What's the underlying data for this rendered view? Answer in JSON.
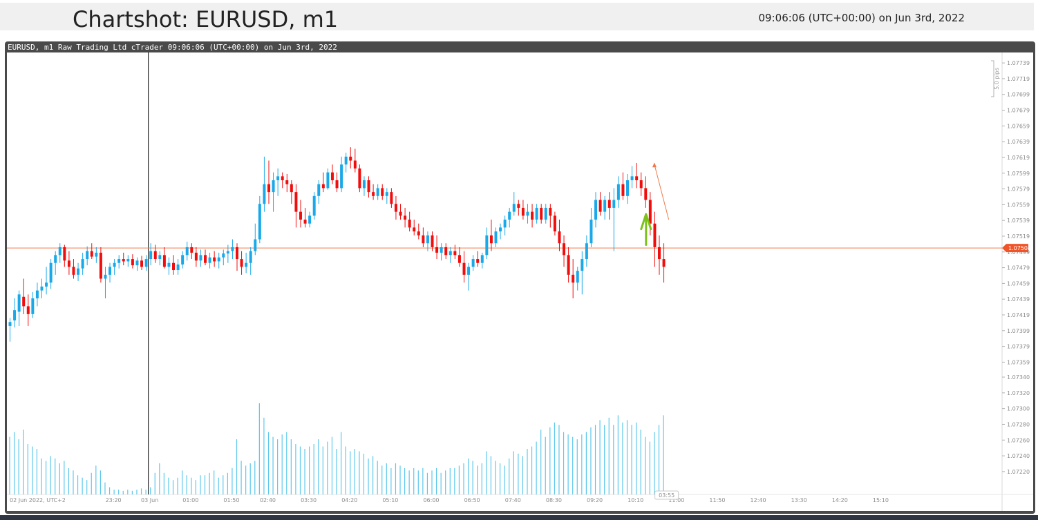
{
  "header": {
    "title": "Chartshot: EURUSD, m1",
    "timestamp": "09:06:06 (UTC+00:00) on Jun 3rd, 2022"
  },
  "chart_caption": "EURUSD, m1 Raw Trading Ltd cTrader 09:06:06 (UTC+00:00) on Jun 3rd, 2022",
  "colors": {
    "bull": "#1aa9e8",
    "bear": "#f20d0d",
    "volume": "#5bc8ec",
    "current_price_line": "#f07a4a",
    "annotation_arrow": "#7dc11b",
    "frame": "#4a4a4a"
  },
  "chart_data": {
    "type": "candlestick",
    "symbol": "EURUSD",
    "timeframe": "m1",
    "ylim": [
      1.07212,
      1.0774
    ],
    "y_ticks": [
      "1.07739",
      "1.07719",
      "1.07699",
      "1.07679",
      "1.07659",
      "1.07639",
      "1.07619",
      "1.07599",
      "1.07579",
      "1.07559",
      "1.07539",
      "1.07519",
      "1.07499",
      "1.07479",
      "1.07459",
      "1.07439",
      "1.07419",
      "1.07399",
      "1.07379",
      "1.07359",
      "1.07340",
      "1.07320",
      "1.07300",
      "1.07280",
      "1.07260",
      "1.07240",
      "1.07220"
    ],
    "x_ticks": [
      {
        "label": "02 Jun 2022, UTC+2",
        "slot": 0
      },
      {
        "label": "23:20",
        "slot": 23
      },
      {
        "label": "03 Jun",
        "slot": 31
      },
      {
        "label": "01:00",
        "slot": 40
      },
      {
        "label": "01:50",
        "slot": 49
      },
      {
        "label": "02:40",
        "slot": 57
      },
      {
        "label": "03:30",
        "slot": 66
      },
      {
        "label": "04:20",
        "slot": 75
      },
      {
        "label": "05:10",
        "slot": 84
      },
      {
        "label": "06:00",
        "slot": 93
      },
      {
        "label": "06:50",
        "slot": 102
      },
      {
        "label": "07:40",
        "slot": 111
      },
      {
        "label": "08:30",
        "slot": 120
      },
      {
        "label": "09:20",
        "slot": 129
      },
      {
        "label": "10:10",
        "slot": 138
      },
      {
        "label": "11:00",
        "slot": 147
      },
      {
        "label": "11:50",
        "slot": 156
      },
      {
        "label": "12:40",
        "slot": 165
      },
      {
        "label": "13:30",
        "slot": 174
      },
      {
        "label": "14:20",
        "slot": 183
      },
      {
        "label": "15:10",
        "slot": 192
      }
    ],
    "current_price": 1.07504,
    "current_price_label": "1.07504",
    "scale_label": "5.0 pips",
    "countdown": "03:55",
    "session_separator_slot": 31,
    "candles": [
      [
        1.07405,
        1.07415,
        1.07385,
        1.0741,
        48
      ],
      [
        1.07412,
        1.0744,
        1.07403,
        1.07425,
        52
      ],
      [
        1.07423,
        1.0745,
        1.07405,
        1.07445,
        46
      ],
      [
        1.07442,
        1.07465,
        1.0742,
        1.0743,
        54
      ],
      [
        1.0743,
        1.07445,
        1.07405,
        1.0742,
        42
      ],
      [
        1.0742,
        1.07448,
        1.07415,
        1.0744,
        40
      ],
      [
        1.0744,
        1.0746,
        1.0743,
        1.0745,
        38
      ],
      [
        1.0745,
        1.07465,
        1.0744,
        1.07455,
        30
      ],
      [
        1.07455,
        1.0748,
        1.07445,
        1.0746,
        28
      ],
      [
        1.0746,
        1.0749,
        1.07452,
        1.07485,
        32
      ],
      [
        1.07485,
        1.075,
        1.0747,
        1.07495,
        30
      ],
      [
        1.07495,
        1.0751,
        1.07485,
        1.07505,
        26
      ],
      [
        1.07505,
        1.07508,
        1.0748,
        1.07488,
        28
      ],
      [
        1.07488,
        1.075,
        1.0747,
        1.0748,
        22
      ],
      [
        1.0748,
        1.0749,
        1.07465,
        1.0747,
        20
      ],
      [
        1.0747,
        1.07485,
        1.07462,
        1.07478,
        16
      ],
      [
        1.07478,
        1.07498,
        1.0747,
        1.0749,
        14
      ],
      [
        1.0749,
        1.07506,
        1.07482,
        1.075,
        12
      ],
      [
        1.075,
        1.0751,
        1.0749,
        1.07493,
        18
      ],
      [
        1.07493,
        1.07505,
        1.07485,
        1.07498,
        24
      ],
      [
        1.07498,
        1.07505,
        1.0746,
        1.07465,
        20
      ],
      [
        1.07465,
        1.0748,
        1.0744,
        1.0747,
        10
      ],
      [
        1.0747,
        1.07485,
        1.0746,
        1.0748,
        6
      ],
      [
        1.0748,
        1.0749,
        1.0747,
        1.07485,
        4
      ],
      [
        1.07485,
        1.07495,
        1.07478,
        1.0749,
        4
      ],
      [
        1.0749,
        1.07498,
        1.07482,
        1.07487,
        3
      ],
      [
        1.07487,
        1.07495,
        1.0748,
        1.0749,
        4
      ],
      [
        1.0749,
        1.07496,
        1.07478,
        1.07482,
        3
      ],
      [
        1.07482,
        1.07492,
        1.07475,
        1.07488,
        4
      ],
      [
        1.07488,
        1.07494,
        1.07476,
        1.0748,
        5
      ],
      [
        1.0748,
        1.07495,
        1.07475,
        1.0749,
        4
      ],
      [
        1.0749,
        1.0751,
        1.07482,
        1.075,
        6
      ],
      [
        1.075,
        1.07508,
        1.07485,
        1.0749,
        18
      ],
      [
        1.0749,
        1.075,
        1.07482,
        1.07495,
        26
      ],
      [
        1.07495,
        1.07505,
        1.07478,
        1.0748,
        18
      ],
      [
        1.0748,
        1.07492,
        1.0747,
        1.07485,
        14
      ],
      [
        1.07485,
        1.07495,
        1.0747,
        1.07476,
        12
      ],
      [
        1.07476,
        1.0749,
        1.0747,
        1.07483,
        14
      ],
      [
        1.07483,
        1.075,
        1.07478,
        1.07495,
        20
      ],
      [
        1.07495,
        1.07512,
        1.07488,
        1.07505,
        16
      ],
      [
        1.07505,
        1.0751,
        1.0749,
        1.07498,
        14
      ],
      [
        1.07498,
        1.07505,
        1.0748,
        1.07488,
        12
      ],
      [
        1.07488,
        1.07502,
        1.0748,
        1.07495,
        16
      ],
      [
        1.07495,
        1.07502,
        1.07482,
        1.07485,
        16
      ],
      [
        1.07485,
        1.07498,
        1.07478,
        1.07492,
        18
      ],
      [
        1.07492,
        1.075,
        1.0748,
        1.07487,
        20
      ],
      [
        1.07487,
        1.07498,
        1.07478,
        1.07492,
        14
      ],
      [
        1.07492,
        1.07502,
        1.07482,
        1.07497,
        16
      ],
      [
        1.07497,
        1.07508,
        1.07485,
        1.075,
        18
      ],
      [
        1.075,
        1.07515,
        1.0749,
        1.07505,
        22
      ],
      [
        1.07505,
        1.0751,
        1.07475,
        1.0749,
        46
      ],
      [
        1.0749,
        1.075,
        1.0747,
        1.0748,
        28
      ],
      [
        1.0748,
        1.07498,
        1.07472,
        1.07485,
        24
      ],
      [
        1.07485,
        1.07505,
        1.0747,
        1.075,
        26
      ],
      [
        1.075,
        1.07535,
        1.07495,
        1.07515,
        28
      ],
      [
        1.07515,
        1.0757,
        1.0751,
        1.0756,
        76
      ],
      [
        1.0756,
        1.0762,
        1.0755,
        1.07585,
        64
      ],
      [
        1.07585,
        1.07615,
        1.0756,
        1.07575,
        52
      ],
      [
        1.07575,
        1.076,
        1.0755,
        1.0759,
        48
      ],
      [
        1.0759,
        1.07605,
        1.0757,
        1.07595,
        46
      ],
      [
        1.07595,
        1.076,
        1.0758,
        1.0759,
        50
      ],
      [
        1.0759,
        1.07598,
        1.07575,
        1.07585,
        52
      ],
      [
        1.07585,
        1.0759,
        1.0756,
        1.07575,
        46
      ],
      [
        1.07575,
        1.07585,
        1.0753,
        1.0755,
        42
      ],
      [
        1.0755,
        1.07565,
        1.0753,
        1.0754,
        40
      ],
      [
        1.0754,
        1.07555,
        1.0753,
        1.07535,
        38
      ],
      [
        1.07535,
        1.0755,
        1.0753,
        1.07545,
        40
      ],
      [
        1.07545,
        1.07575,
        1.0754,
        1.0757,
        42
      ],
      [
        1.0757,
        1.0759,
        1.0756,
        1.07585,
        46
      ],
      [
        1.07585,
        1.076,
        1.07575,
        1.0758,
        40
      ],
      [
        1.0758,
        1.07605,
        1.07578,
        1.076,
        44
      ],
      [
        1.076,
        1.0761,
        1.07585,
        1.0759,
        48
      ],
      [
        1.0759,
        1.076,
        1.07575,
        1.0758,
        38
      ],
      [
        1.0758,
        1.0762,
        1.07575,
        1.0761,
        52
      ],
      [
        1.0761,
        1.07625,
        1.076,
        1.0762,
        40
      ],
      [
        1.0762,
        1.07632,
        1.07605,
        1.07615,
        36
      ],
      [
        1.07615,
        1.0763,
        1.076,
        1.07605,
        38
      ],
      [
        1.07605,
        1.0761,
        1.07575,
        1.0758,
        36
      ],
      [
        1.0758,
        1.07595,
        1.0757,
        1.0759,
        34
      ],
      [
        1.0759,
        1.07595,
        1.07568,
        1.07575,
        30
      ],
      [
        1.07575,
        1.07585,
        1.07565,
        1.0757,
        32
      ],
      [
        1.0757,
        1.07585,
        1.07565,
        1.0758,
        28
      ],
      [
        1.0758,
        1.07585,
        1.07565,
        1.0757,
        24
      ],
      [
        1.0757,
        1.0758,
        1.0756,
        1.07575,
        26
      ],
      [
        1.07575,
        1.0758,
        1.07555,
        1.0756,
        22
      ],
      [
        1.0756,
        1.0757,
        1.0754,
        1.0755,
        26
      ],
      [
        1.0755,
        1.0756,
        1.0754,
        1.07545,
        24
      ],
      [
        1.07545,
        1.07555,
        1.0753,
        1.0754,
        22
      ],
      [
        1.0754,
        1.0755,
        1.07525,
        1.0753,
        20
      ],
      [
        1.0753,
        1.0754,
        1.0752,
        1.07525,
        22
      ],
      [
        1.07525,
        1.07535,
        1.07515,
        1.0752,
        20
      ],
      [
        1.0752,
        1.0753,
        1.07505,
        1.0751,
        22
      ],
      [
        1.0751,
        1.07525,
        1.075,
        1.0752,
        18
      ],
      [
        1.0752,
        1.07525,
        1.075,
        1.07505,
        20
      ],
      [
        1.07505,
        1.0752,
        1.0749,
        1.07498,
        22
      ],
      [
        1.07498,
        1.0751,
        1.07488,
        1.07505,
        18
      ],
      [
        1.07505,
        1.0751,
        1.0749,
        1.07495,
        20
      ],
      [
        1.07495,
        1.07505,
        1.07485,
        1.075,
        22
      ],
      [
        1.075,
        1.07508,
        1.0749,
        1.07495,
        22
      ],
      [
        1.07495,
        1.07505,
        1.0748,
        1.07485,
        24
      ],
      [
        1.07485,
        1.075,
        1.0746,
        1.0747,
        26
      ],
      [
        1.0747,
        1.07485,
        1.0745,
        1.0748,
        30
      ],
      [
        1.0748,
        1.07495,
        1.07475,
        1.0749,
        28
      ],
      [
        1.0749,
        1.075,
        1.0748,
        1.07485,
        24
      ],
      [
        1.07485,
        1.07498,
        1.07478,
        1.07495,
        26
      ],
      [
        1.07495,
        1.0753,
        1.0749,
        1.0752,
        36
      ],
      [
        1.0752,
        1.0754,
        1.075,
        1.0751,
        32
      ],
      [
        1.0751,
        1.0753,
        1.07505,
        1.07525,
        28
      ],
      [
        1.07525,
        1.07535,
        1.07515,
        1.0753,
        26
      ],
      [
        1.0753,
        1.07545,
        1.0752,
        1.0754,
        24
      ],
      [
        1.0754,
        1.07555,
        1.0753,
        1.0755,
        30
      ],
      [
        1.0755,
        1.07575,
        1.07545,
        1.0756,
        36
      ],
      [
        1.0756,
        1.07565,
        1.07545,
        1.07555,
        34
      ],
      [
        1.07555,
        1.07565,
        1.0754,
        1.07545,
        32
      ],
      [
        1.07545,
        1.0756,
        1.07535,
        1.0755,
        38
      ],
      [
        1.0755,
        1.0756,
        1.0753,
        1.0754,
        40
      ],
      [
        1.0754,
        1.0756,
        1.07535,
        1.07555,
        44
      ],
      [
        1.07555,
        1.0756,
        1.07535,
        1.0754,
        54
      ],
      [
        1.0754,
        1.0756,
        1.07535,
        1.07555,
        48
      ],
      [
        1.07555,
        1.0756,
        1.0753,
        1.07545,
        56
      ],
      [
        1.07545,
        1.0755,
        1.0752,
        1.07525,
        60
      ],
      [
        1.07525,
        1.0754,
        1.075,
        1.0751,
        58
      ],
      [
        1.0751,
        1.0752,
        1.0748,
        1.07495,
        52
      ],
      [
        1.07495,
        1.07505,
        1.0746,
        1.0747,
        50
      ],
      [
        1.0747,
        1.0749,
        1.0744,
        1.0746,
        48
      ],
      [
        1.0746,
        1.0748,
        1.0745,
        1.07475,
        46
      ],
      [
        1.07475,
        1.075,
        1.07445,
        1.0749,
        50
      ],
      [
        1.0749,
        1.0752,
        1.0748,
        1.0751,
        52
      ],
      [
        1.0751,
        1.07555,
        1.07505,
        1.0754,
        56
      ],
      [
        1.0754,
        1.07575,
        1.0753,
        1.07565,
        58
      ],
      [
        1.07565,
        1.07575,
        1.07545,
        1.0755,
        62
      ],
      [
        1.0755,
        1.0757,
        1.0754,
        1.07565,
        58
      ],
      [
        1.07565,
        1.07575,
        1.0754,
        1.07555,
        64
      ],
      [
        1.07555,
        1.0758,
        1.075,
        1.07565,
        58
      ],
      [
        1.07565,
        1.07595,
        1.07555,
        1.07585,
        66
      ],
      [
        1.07585,
        1.076,
        1.07565,
        1.0757,
        60
      ],
      [
        1.0757,
        1.07598,
        1.0756,
        1.0759,
        62
      ],
      [
        1.0759,
        1.07608,
        1.0758,
        1.07595,
        58
      ],
      [
        1.07595,
        1.07612,
        1.0758,
        1.0759,
        60
      ],
      [
        1.0759,
        1.076,
        1.0757,
        1.0758,
        54
      ],
      [
        1.0758,
        1.07595,
        1.07555,
        1.07565,
        48
      ],
      [
        1.07565,
        1.07575,
        1.0752,
        1.07535,
        44
      ],
      [
        1.07535,
        1.0755,
        1.0748,
        1.07505,
        52
      ],
      [
        1.07505,
        1.0752,
        1.0747,
        1.0749,
        58
      ],
      [
        1.0749,
        1.0751,
        1.0746,
        1.0748,
        66
      ]
    ]
  }
}
